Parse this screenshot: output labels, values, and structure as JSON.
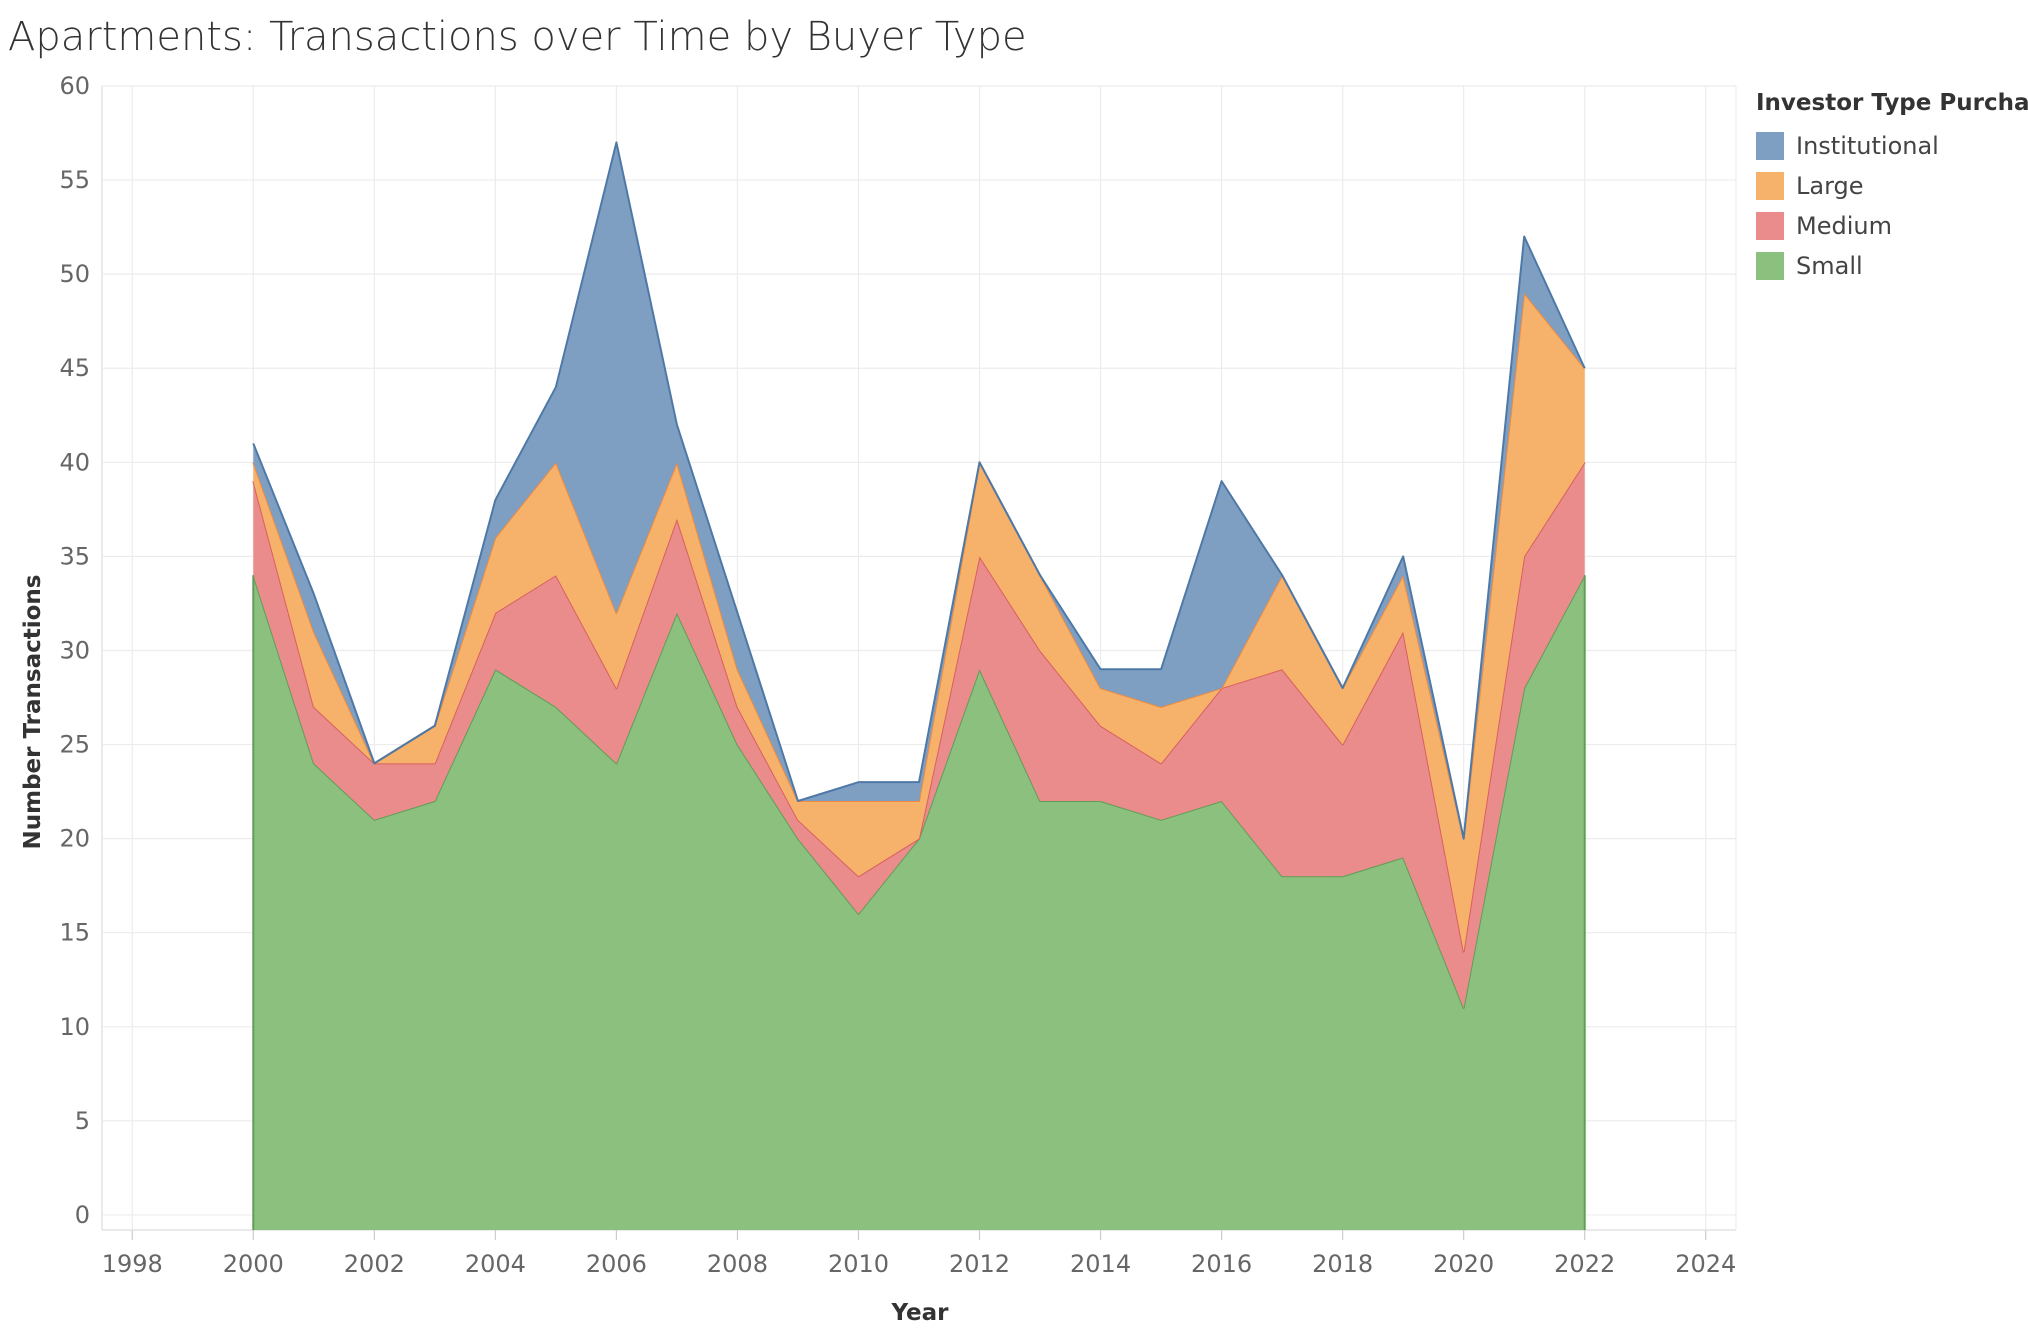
{
  "chart_data": {
    "type": "area",
    "stacked": true,
    "title": "Apartments: Transactions over Time by Buyer Type",
    "xlabel": "Year",
    "ylabel": "Number Transactions",
    "xlim": [
      1997.5,
      2024.5
    ],
    "ylim": [
      -0.8,
      60
    ],
    "x_ticks": [
      1998,
      2000,
      2002,
      2004,
      2006,
      2008,
      2010,
      2012,
      2014,
      2016,
      2018,
      2020,
      2022,
      2024
    ],
    "y_ticks": [
      0,
      5,
      10,
      15,
      20,
      25,
      30,
      35,
      40,
      45,
      50,
      55,
      60
    ],
    "grid": true,
    "legend": {
      "title": "Investor Type Purchase",
      "placement": "top-right"
    },
    "x": [
      2000,
      2001,
      2002,
      2003,
      2004,
      2005,
      2006,
      2007,
      2008,
      2009,
      2010,
      2011,
      2012,
      2013,
      2014,
      2015,
      2016,
      2017,
      2018,
      2019,
      2020,
      2021,
      2022
    ],
    "series": [
      {
        "name": "Small",
        "color": "#8cc07e",
        "line": "#5f9e55",
        "values": [
          34,
          24,
          21,
          22,
          29,
          27,
          24,
          32,
          25,
          20,
          16,
          20,
          29,
          22,
          22,
          21,
          22,
          18,
          18,
          19,
          11,
          28,
          34
        ]
      },
      {
        "name": "Medium",
        "color": "#ea8b8c",
        "line": "#d95f5f",
        "values": [
          5,
          3,
          3,
          2,
          3,
          7,
          4,
          5,
          2,
          1,
          2,
          0,
          6,
          8,
          4,
          3,
          6,
          11,
          7,
          12,
          3,
          7,
          6
        ]
      },
      {
        "name": "Large",
        "color": "#f6b26b",
        "line": "#f08a3c",
        "values": [
          1,
          4,
          0,
          2,
          4,
          6,
          4,
          3,
          2,
          1,
          4,
          2,
          5,
          4,
          2,
          3,
          0,
          5,
          3,
          3,
          6,
          14,
          5
        ]
      },
      {
        "name": "Institutional",
        "color": "#7f9fc2",
        "line": "#4e79a7",
        "values": [
          1,
          2,
          0,
          0,
          2,
          4,
          25,
          2,
          3,
          0,
          1,
          1,
          0,
          0,
          1,
          2,
          11,
          0,
          0,
          1,
          0,
          3,
          0
        ]
      }
    ]
  }
}
